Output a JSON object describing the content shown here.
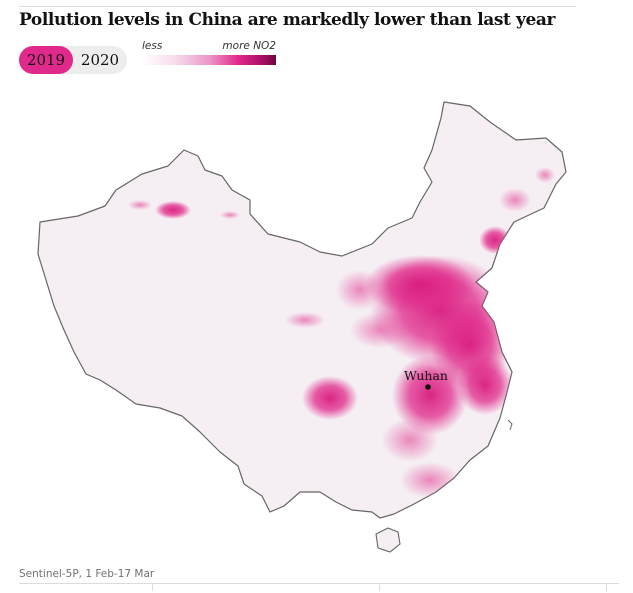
{
  "title": "Pollution levels in China are markedly lower than last year",
  "toggle": {
    "options": [
      "2019",
      "2020"
    ],
    "selected": "2019",
    "active_color": "#e0298a"
  },
  "legend": {
    "low_label": "less",
    "high_label": "more NO2",
    "colors": [
      "#ffffff",
      "#f6dcec",
      "#ec97c8",
      "#e0298a",
      "#b0106a",
      "#6e0640"
    ]
  },
  "map": {
    "city_label": "Wuhan",
    "land_color": "#f5eef3",
    "border_color": "#666666"
  },
  "source": "Sentinel-5P, 1 Feb-17 Mar"
}
